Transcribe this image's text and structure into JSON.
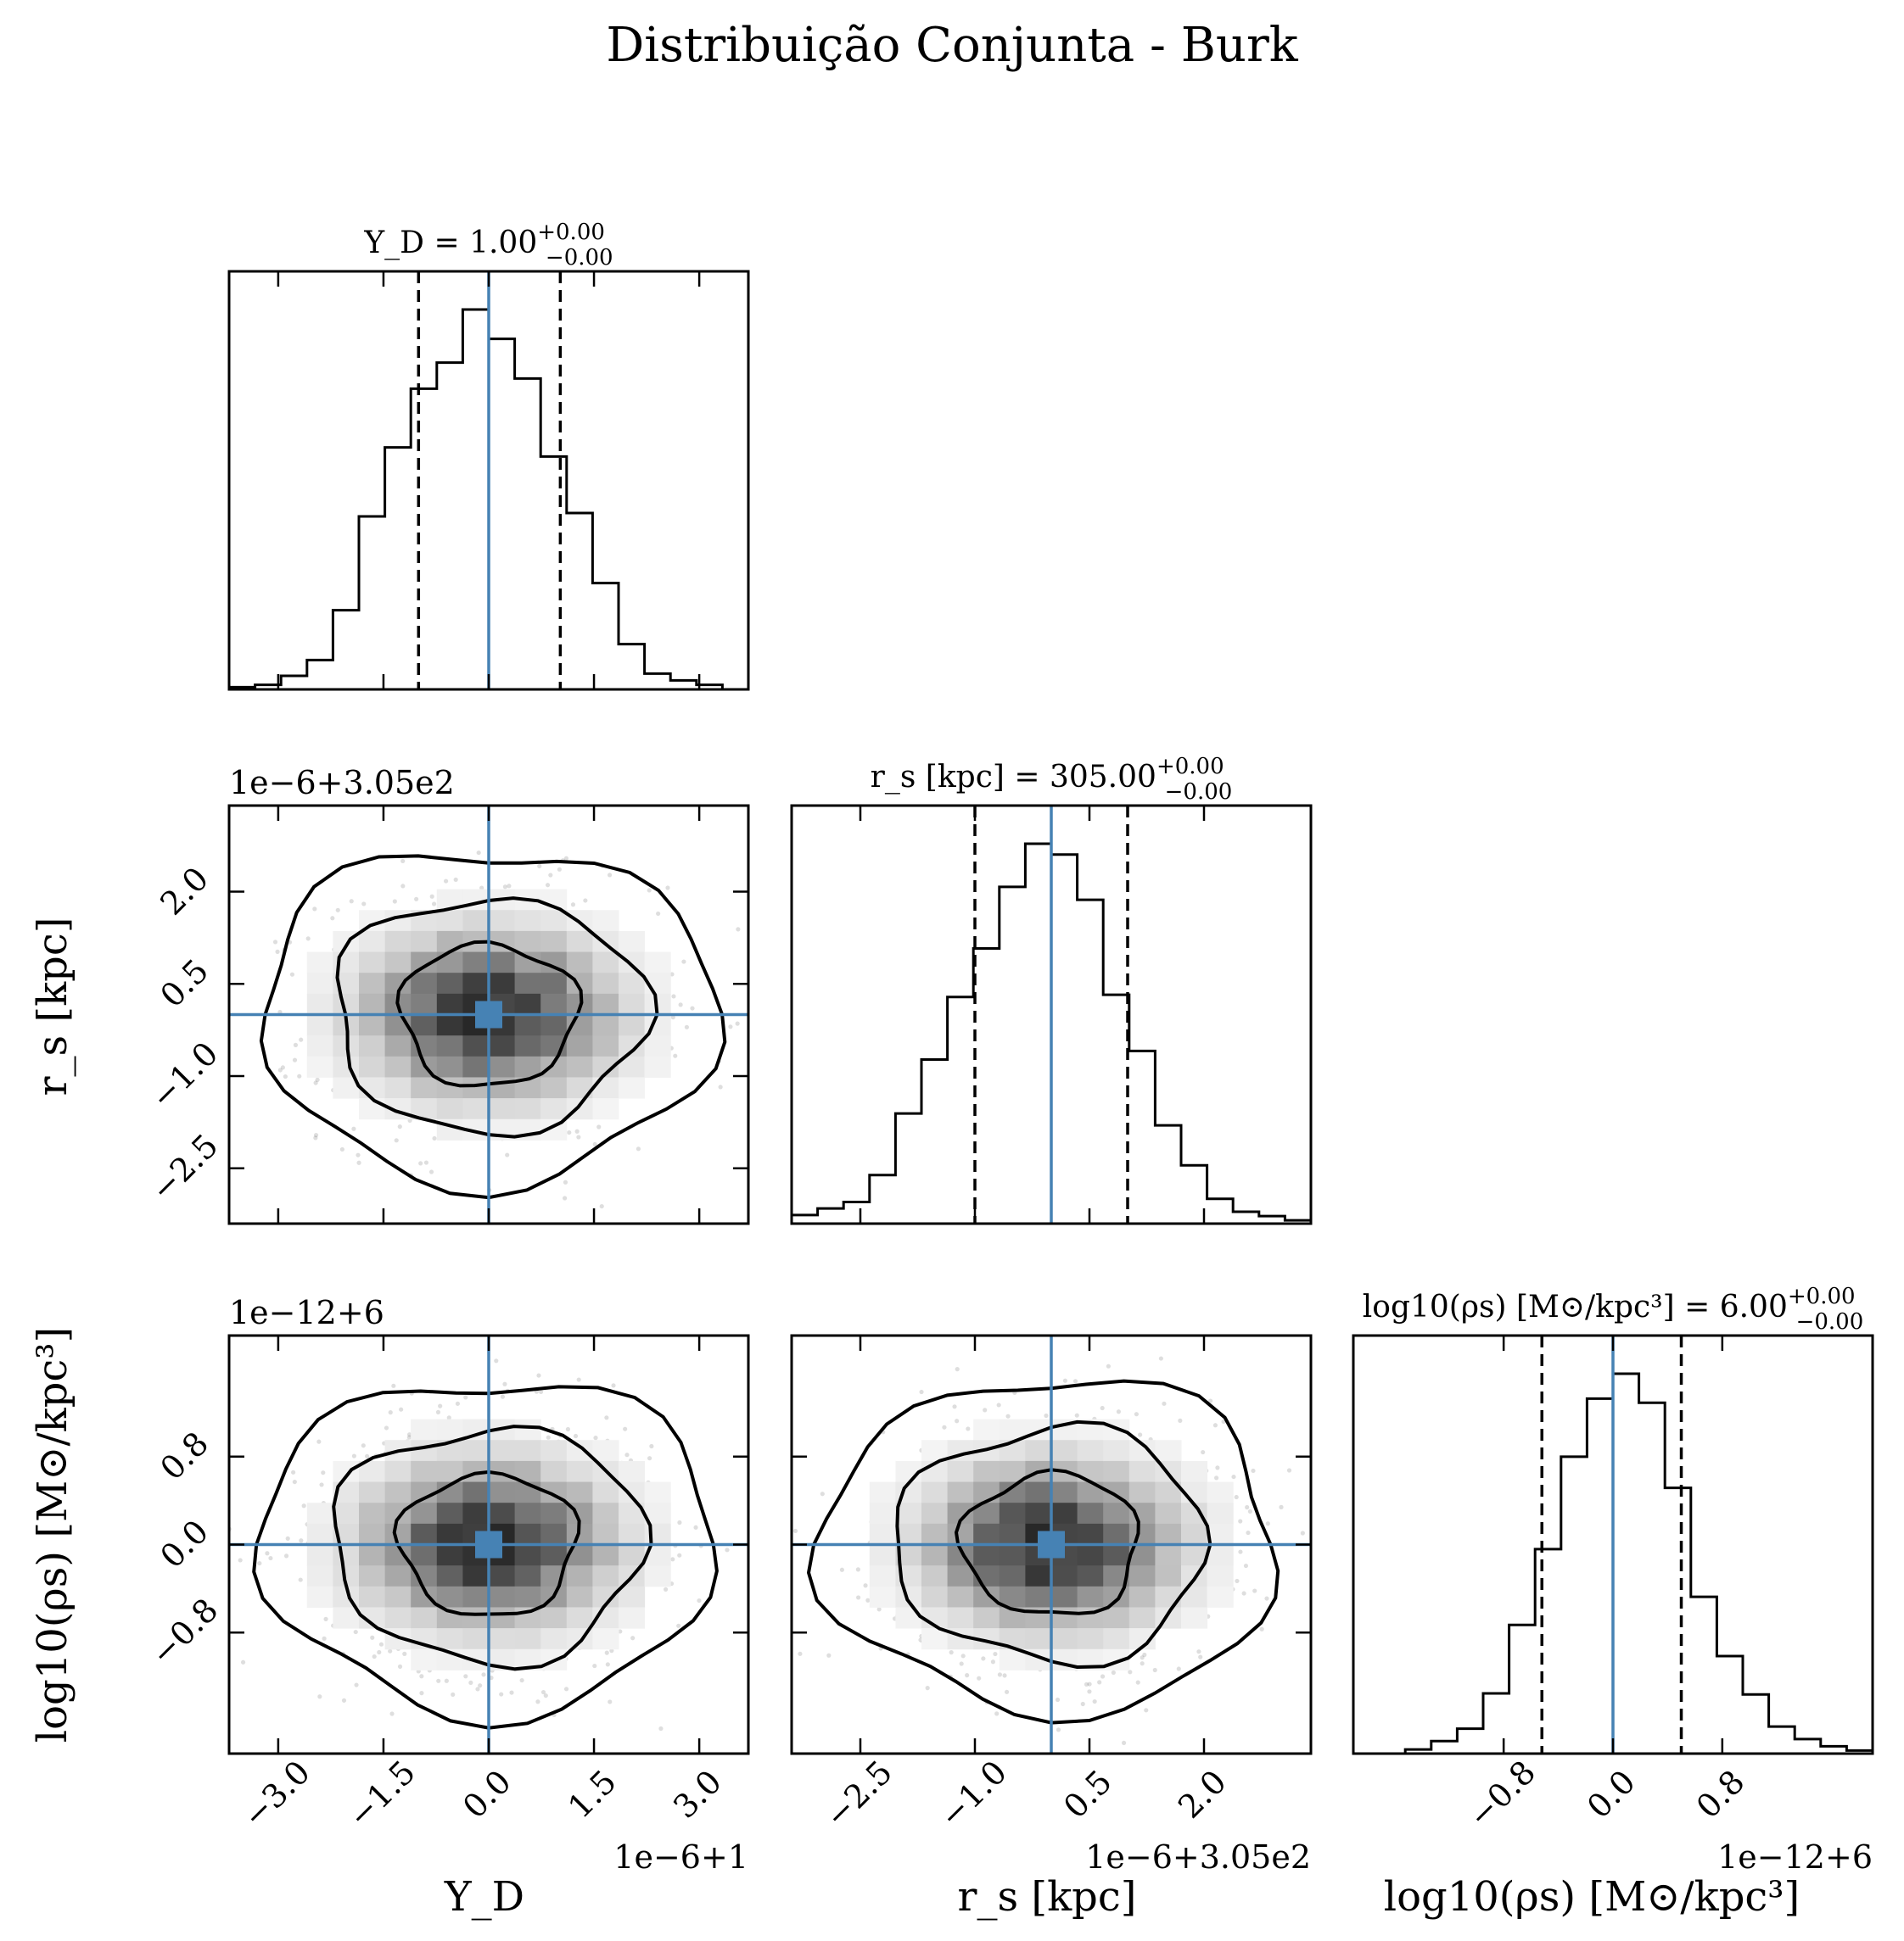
{
  "figure": {
    "title": "Distribuição Conjunta - Burk",
    "truth_color": "#4682b4",
    "hist_color": "#000000",
    "contour_color": "#000000"
  },
  "chart_data": {
    "type": "corner",
    "parameters": [
      {
        "key": "YD",
        "axis_label": "Y_D",
        "title_base": "Y_D = 1.00",
        "title_plus": "+0.00",
        "title_minus": "−0.00",
        "offset_label": "1e−6+1",
        "range": [
          -3.7,
          3.7
        ],
        "ticks": [
          -3.0,
          -1.5,
          0.0,
          1.5,
          3.0
        ],
        "tick_labels": [
          "−3.0",
          "−1.5",
          "0.0",
          "1.5",
          "3.0"
        ],
        "truth": 0.0,
        "quantiles": [
          -1.0,
          0.0,
          1.02
        ],
        "hist": {
          "bin_edges": [
            -3.7,
            -3.33,
            -2.96,
            -2.59,
            -2.22,
            -1.85,
            -1.48,
            -1.11,
            -0.74,
            -0.37,
            0.0,
            0.37,
            0.74,
            1.11,
            1.48,
            1.85,
            2.22,
            2.59,
            2.96,
            3.33,
            3.7
          ],
          "counts": [
            2,
            4,
            12,
            26,
            70,
            153,
            214,
            266,
            289,
            336,
            310,
            275,
            206,
            156,
            94,
            40,
            14,
            8,
            4,
            0
          ]
        }
      },
      {
        "key": "rs",
        "axis_label": "r_s [kpc]",
        "title_base": "r_s [kpc] = 305.00",
        "title_plus": "+0.00",
        "title_minus": "−0.00",
        "offset_label": "1e−6+3.05e2",
        "range": [
          -3.4,
          3.4
        ],
        "ticks": [
          -2.5,
          -1.0,
          0.5,
          2.0
        ],
        "tick_labels": [
          "−2.5",
          "−1.0",
          "0.5",
          "2.0"
        ],
        "truth": 0.0,
        "quantiles": [
          -1.0,
          0.0,
          1.0
        ],
        "hist": {
          "bin_edges": [
            -3.4,
            -3.06,
            -2.72,
            -2.38,
            -2.04,
            -1.7,
            -1.36,
            -1.02,
            -0.68,
            -0.34,
            0.0,
            0.34,
            0.68,
            1.02,
            1.36,
            1.7,
            2.04,
            2.38,
            2.72,
            3.06,
            3.4
          ],
          "counts": [
            8,
            14,
            20,
            45,
            102,
            152,
            210,
            255,
            312,
            352,
            342,
            300,
            212,
            160,
            91,
            54,
            23,
            11,
            7,
            3
          ]
        }
      },
      {
        "key": "logrho",
        "axis_label": "log10(ρs) [M⊙/kpc³]",
        "title_base": "log10(ρs) [M⊙/kpc³] = 6.00",
        "title_plus": "+0.00",
        "title_minus": "−0.00",
        "offset_label": "1e−12+6",
        "range": [
          -1.9,
          1.9
        ],
        "ticks": [
          -0.8,
          0.0,
          0.8
        ],
        "tick_labels": [
          "−0.8",
          "0.0",
          "0.8"
        ],
        "truth": 0.0,
        "quantiles": [
          -0.52,
          0.0,
          0.5
        ],
        "hist": {
          "bin_edges": [
            -1.9,
            -1.71,
            -1.52,
            -1.33,
            -1.14,
            -0.95,
            -0.76,
            -0.57,
            -0.38,
            -0.19,
            0.0,
            0.19,
            0.38,
            0.57,
            0.76,
            0.95,
            1.14,
            1.33,
            1.52,
            1.71,
            1.9
          ],
          "counts": [
            0,
            0,
            4,
            12,
            24,
            58,
            124,
            197,
            286,
            342,
            366,
            338,
            256,
            151,
            94,
            57,
            26,
            14,
            7,
            3
          ]
        }
      }
    ]
  }
}
